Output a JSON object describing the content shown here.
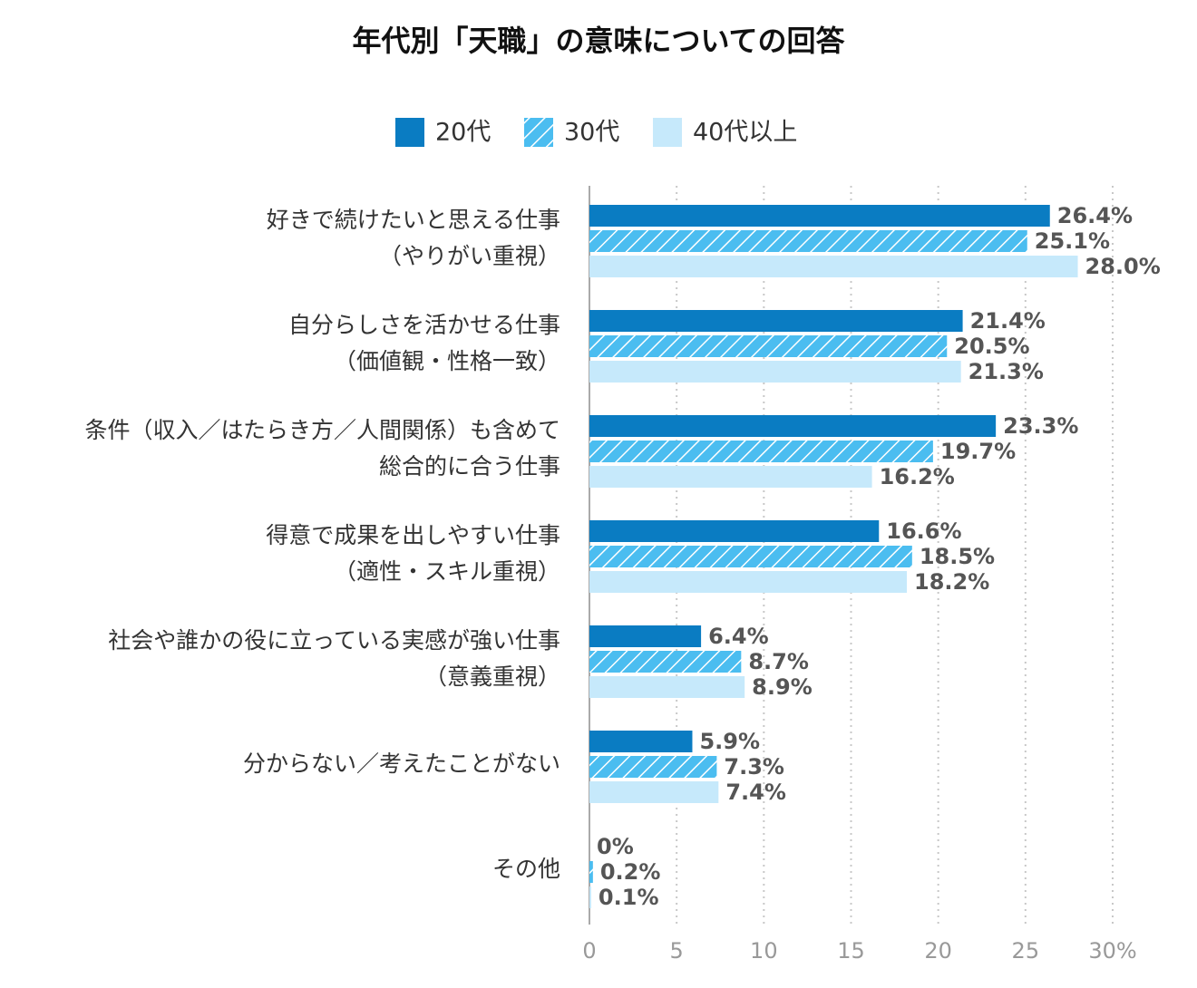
{
  "chart_data": {
    "type": "bar",
    "orientation": "horizontal",
    "title": "年代別「天職」の意味についての回答",
    "categories": [
      [
        "好きで続けたいと思える仕事",
        "（やりがい重視）"
      ],
      [
        "自分らしさを活かせる仕事",
        "（価値観・性格一致）"
      ],
      [
        "条件（収入／はたらき方／人間関係）も含めて",
        "総合的に合う仕事"
      ],
      [
        "得意で成果を出しやすい仕事",
        "（適性・スキル重視）"
      ],
      [
        "社会や誰かの役に立っている実感が強い仕事",
        "（意義重視）"
      ],
      [
        "分からない／考えたことがない"
      ],
      [
        "その他"
      ]
    ],
    "series": [
      {
        "name": "20代",
        "color": "#0a7cc2",
        "values": [
          26.4,
          21.4,
          23.3,
          16.6,
          6.4,
          5.9,
          0
        ],
        "value_labels": [
          "26.4%",
          "21.4%",
          "23.3%",
          "16.6%",
          "6.4%",
          "5.9%",
          "0%"
        ]
      },
      {
        "name": "30代",
        "color": "#4bbdf0",
        "pattern": "hatch",
        "values": [
          25.1,
          20.5,
          19.7,
          18.5,
          8.7,
          7.3,
          0.2
        ],
        "value_labels": [
          "25.1%",
          "20.5%",
          "19.7%",
          "18.5%",
          "8.7%",
          "7.3%",
          "0.2%"
        ]
      },
      {
        "name": "40代以上",
        "color": "#c6e9fb",
        "values": [
          28.0,
          21.3,
          16.2,
          18.2,
          8.9,
          7.4,
          0.1
        ],
        "value_labels": [
          "28.0%",
          "21.3%",
          "16.2%",
          "18.2%",
          "8.9%",
          "7.4%",
          "0.1%"
        ]
      }
    ],
    "xlim": [
      0,
      30
    ],
    "xticks": [
      0,
      5,
      10,
      15,
      20,
      25,
      {
        "value": 30,
        "label": "30%"
      }
    ],
    "grid": true,
    "legend": "top"
  }
}
